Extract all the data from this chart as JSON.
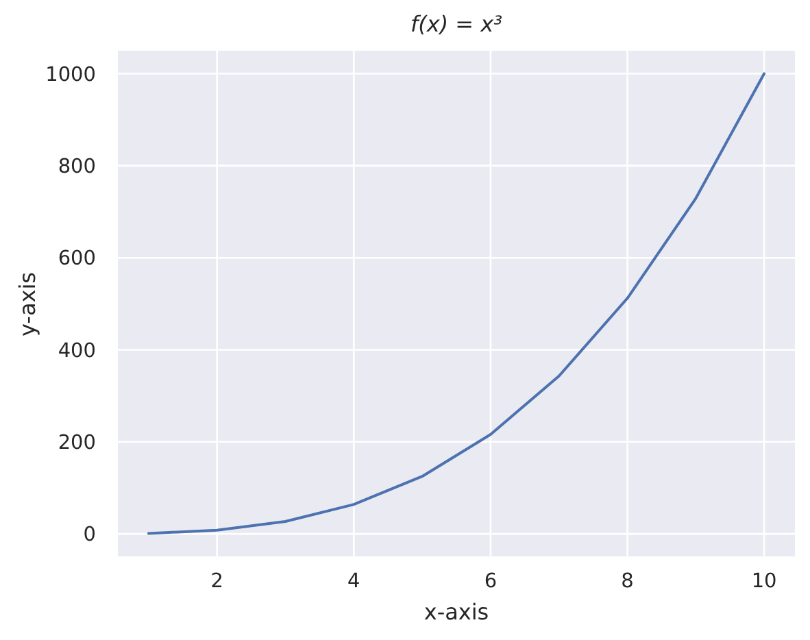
{
  "chart_data": {
    "type": "line",
    "title": "f(x) = x³",
    "xlabel": "x-axis",
    "ylabel": "y-axis",
    "x": [
      1,
      2,
      3,
      4,
      5,
      6,
      7,
      8,
      9,
      10
    ],
    "values": [
      1,
      8,
      27,
      64,
      125,
      216,
      343,
      512,
      729,
      1000
    ],
    "color": "#4c72b0",
    "xlim": [
      0.55,
      10.45
    ],
    "xticks": [
      2,
      4,
      6,
      8,
      10
    ],
    "ylim": [
      -48.95,
      1049.95
    ],
    "yticks": [
      0,
      200,
      400,
      600,
      800,
      1000
    ],
    "grid": true
  }
}
